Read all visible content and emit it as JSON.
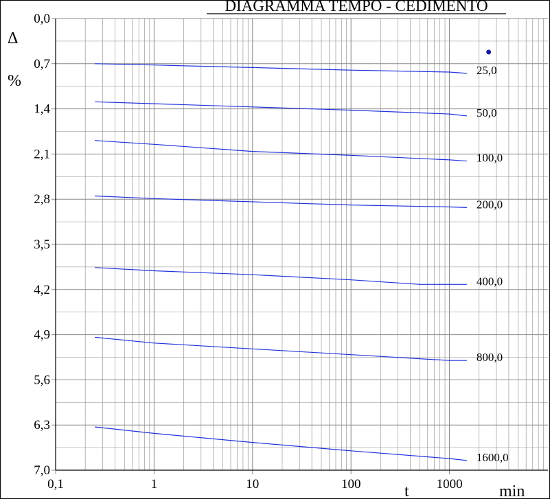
{
  "chart_data": {
    "type": "line",
    "title": "DIAGRAMMA  TEMPO - CEDIMENTO",
    "ylabel_symbol": "Δ",
    "ylabel_unit": "%",
    "xlabel": "t",
    "xunit": "min",
    "x_scale": "log",
    "xlim": [
      0.1,
      10000
    ],
    "ylim": [
      0.0,
      7.0
    ],
    "y_inverted": true,
    "grid": true,
    "x_ticks": [
      "0,1",
      "1",
      "10",
      "100",
      "1000"
    ],
    "y_ticks": [
      "0,0",
      "0,7",
      "1,4",
      "2,1",
      "2,8",
      "3,5",
      "4,2",
      "4,9",
      "5,6",
      "6,3",
      "7,0"
    ],
    "colors": {
      "series": "#2233dd",
      "grid": "#888888",
      "marker": "#1a1aa0"
    },
    "marker_point": {
      "x": 2500,
      "y": 0.52
    },
    "series": [
      {
        "name": "25,0",
        "x": [
          0.25,
          1,
          10,
          100,
          1000,
          1500
        ],
        "y": [
          0.7,
          0.72,
          0.76,
          0.8,
          0.83,
          0.85
        ]
      },
      {
        "name": "50,0",
        "x": [
          0.25,
          1,
          10,
          100,
          1000,
          1500
        ],
        "y": [
          1.29,
          1.32,
          1.37,
          1.42,
          1.48,
          1.51
        ]
      },
      {
        "name": "100,0",
        "x": [
          0.25,
          1,
          10,
          100,
          1000,
          1500
        ],
        "y": [
          1.89,
          1.95,
          2.06,
          2.12,
          2.19,
          2.21
        ]
      },
      {
        "name": "200,0",
        "x": [
          0.25,
          1,
          10,
          100,
          1000,
          1500
        ],
        "y": [
          2.75,
          2.79,
          2.84,
          2.89,
          2.92,
          2.93
        ]
      },
      {
        "name": "400,0",
        "x": [
          0.25,
          1,
          10,
          100,
          500,
          1500
        ],
        "y": [
          3.86,
          3.91,
          3.97,
          4.05,
          4.12,
          4.12
        ]
      },
      {
        "name": "800,0",
        "x": [
          0.25,
          1,
          10,
          100,
          1000,
          1500
        ],
        "y": [
          4.94,
          5.03,
          5.12,
          5.21,
          5.3,
          5.3
        ]
      },
      {
        "name": "1600,0",
        "x": [
          0.25,
          1,
          10,
          100,
          1000,
          1500
        ],
        "y": [
          6.33,
          6.43,
          6.57,
          6.7,
          6.82,
          6.85
        ]
      }
    ]
  }
}
